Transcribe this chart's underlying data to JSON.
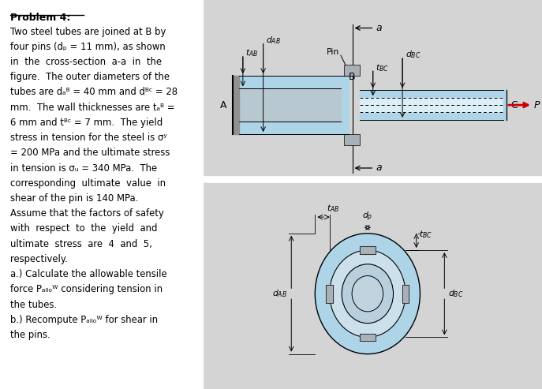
{
  "bg_color": "#e8e8e8",
  "text_color": "#000000",
  "tube_color": "#aed4e8",
  "tube_dark": "#7ab8d4",
  "pin_color": "#b0b8c0",
  "wall_color": "#6a9db8",
  "arrow_color": "#cc0000",
  "title": "Problem 4:",
  "body_lines": [
    "Two steel tubes are joined at B by",
    "four pins (dp = 11 mm), as shown",
    "in  the  cross-section  a-a  in  the",
    "figure.  The outer diameters of the",
    "tubes are dAB = 40 mm and dBC = 28",
    "mm.  The wall thicknesses are tAB =",
    "6 mm and tBC = 7 mm.  The yield",
    "stress in tension for the steel is sy",
    "= 200 MPa and the ultimate stress",
    "in tension is su = 340 MPa.  The",
    "corresponding  ultimate  value  in",
    "shear of the pin is 140 MPa.",
    "Assume that the factors of safety",
    "with  respect  to  the  yield  and",
    "ultimate  stress  are  4  and  5,",
    "respectively.",
    "a.) Calculate the allowable tensile",
    "force Pallow considering tension in",
    "the tubes.",
    "b.) Recompute Pallow for shear in",
    "the pins."
  ],
  "tube_color_light": "#c8e4f0",
  "tube_inner_color": "#c0c0c0",
  "pin_gray": "#a8b0b8",
  "bg_gray": "#d8d8d8"
}
